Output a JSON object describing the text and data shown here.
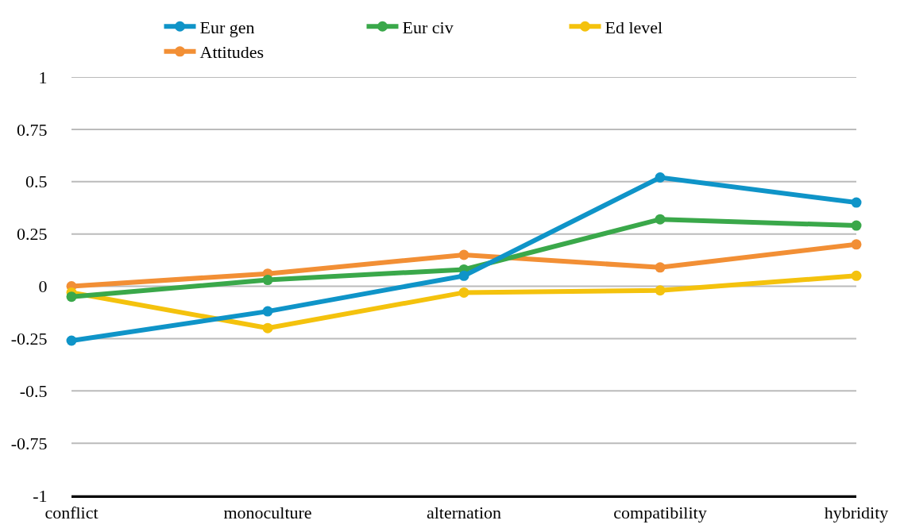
{
  "chart_data": {
    "type": "line",
    "categories": [
      "conflict",
      "monoculture",
      "alternation",
      "compatibility",
      "hybridity"
    ],
    "series": [
      {
        "name": "Eur gen",
        "color": "#0f94c8",
        "values": [
          -0.26,
          -0.12,
          0.05,
          0.52,
          0.4
        ]
      },
      {
        "name": "Eur civ",
        "color": "#3aa84a",
        "values": [
          -0.05,
          0.03,
          0.08,
          0.32,
          0.29
        ]
      },
      {
        "name": "Ed level",
        "color": "#f4c20d",
        "values": [
          -0.03,
          -0.2,
          -0.03,
          -0.02,
          0.05
        ]
      },
      {
        "name": "Attitudes",
        "color": "#f28f35",
        "values": [
          0.0,
          0.06,
          0.15,
          0.09,
          0.2
        ]
      }
    ],
    "ylim": [
      -1,
      1
    ],
    "yticks": [
      -1,
      -0.75,
      -0.5,
      -0.25,
      0,
      0.25,
      0.5,
      0.75,
      1
    ],
    "grid": "y",
    "legend": "top",
    "marker": "circle",
    "line_style": "solid"
  }
}
